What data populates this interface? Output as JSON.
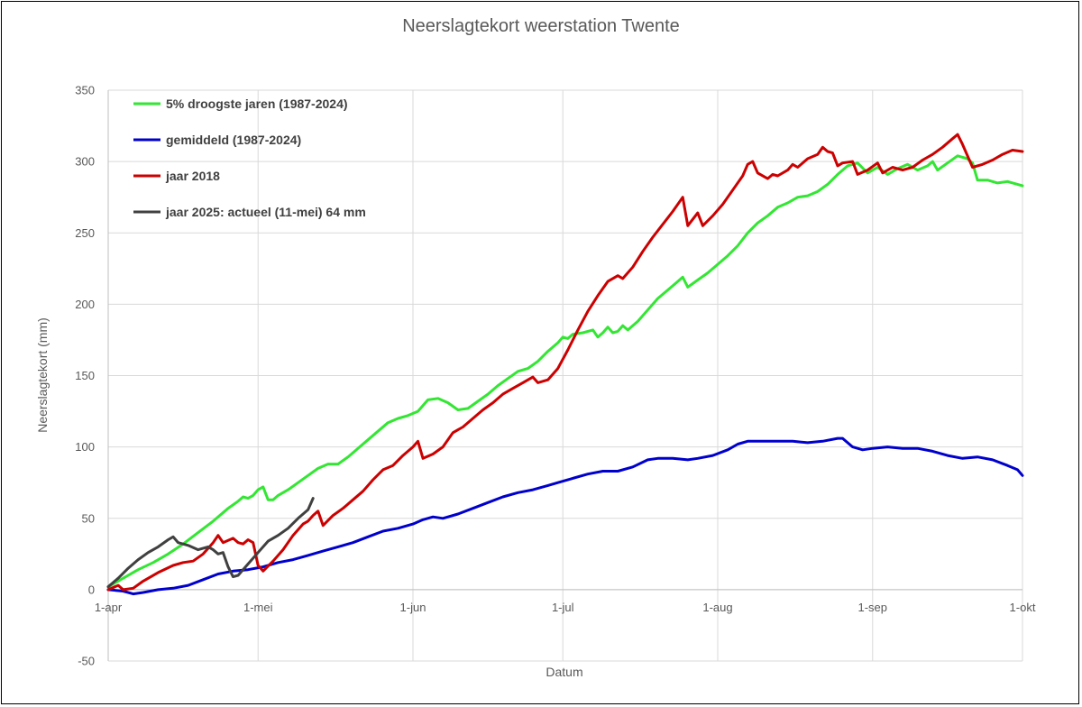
{
  "chart_data": {
    "type": "line",
    "title": "Neerslagtekort weerstation Twente",
    "xlabel": "Datum",
    "ylabel": "Neerslagtekort (mm)",
    "ylim": [
      -50,
      350
    ],
    "yticks": [
      -50,
      0,
      50,
      100,
      150,
      200,
      250,
      300,
      350
    ],
    "xlim": [
      "1-apr",
      "1-okt"
    ],
    "xticks": [
      {
        "label": "1-apr",
        "day": 0
      },
      {
        "label": "1-mei",
        "day": 30
      },
      {
        "label": "1-jun",
        "day": 61
      },
      {
        "label": "1-jul",
        "day": 91
      },
      {
        "label": "1-aug",
        "day": 122
      },
      {
        "label": "1-sep",
        "day": 153
      },
      {
        "label": "1-okt",
        "day": 183
      }
    ],
    "grid": true,
    "legend_position": "top-left",
    "series": [
      {
        "name": "5% droogste jaren (1987-2024)",
        "color": "#33e633",
        "points": [
          [
            0,
            2
          ],
          [
            3,
            8
          ],
          [
            6,
            14
          ],
          [
            9,
            19
          ],
          [
            12,
            25
          ],
          [
            15,
            32
          ],
          [
            18,
            40
          ],
          [
            21,
            48
          ],
          [
            24,
            57
          ],
          [
            26,
            62
          ],
          [
            27,
            65
          ],
          [
            28,
            64
          ],
          [
            29,
            66
          ],
          [
            30,
            70
          ],
          [
            31,
            72
          ],
          [
            32,
            63
          ],
          [
            33,
            63
          ],
          [
            34,
            66
          ],
          [
            36,
            70
          ],
          [
            38,
            75
          ],
          [
            40,
            80
          ],
          [
            42,
            85
          ],
          [
            44,
            88
          ],
          [
            46,
            88
          ],
          [
            48,
            93
          ],
          [
            50,
            99
          ],
          [
            52,
            105
          ],
          [
            54,
            111
          ],
          [
            56,
            117
          ],
          [
            58,
            120
          ],
          [
            60,
            122
          ],
          [
            62,
            125
          ],
          [
            64,
            133
          ],
          [
            66,
            134
          ],
          [
            68,
            131
          ],
          [
            70,
            126
          ],
          [
            72,
            127
          ],
          [
            74,
            132
          ],
          [
            76,
            137
          ],
          [
            78,
            143
          ],
          [
            80,
            148
          ],
          [
            82,
            153
          ],
          [
            84,
            155
          ],
          [
            86,
            160
          ],
          [
            88,
            167
          ],
          [
            90,
            173
          ],
          [
            91,
            177
          ],
          [
            92,
            176
          ],
          [
            93,
            179
          ],
          [
            95,
            180
          ],
          [
            97,
            182
          ],
          [
            98,
            177
          ],
          [
            99,
            180
          ],
          [
            100,
            184
          ],
          [
            101,
            180
          ],
          [
            102,
            181
          ],
          [
            103,
            185
          ],
          [
            104,
            182
          ],
          [
            106,
            188
          ],
          [
            108,
            196
          ],
          [
            110,
            204
          ],
          [
            112,
            210
          ],
          [
            114,
            216
          ],
          [
            115,
            219
          ],
          [
            116,
            212
          ],
          [
            118,
            217
          ],
          [
            120,
            222
          ],
          [
            122,
            228
          ],
          [
            124,
            234
          ],
          [
            126,
            241
          ],
          [
            128,
            250
          ],
          [
            130,
            257
          ],
          [
            132,
            262
          ],
          [
            134,
            268
          ],
          [
            136,
            271
          ],
          [
            138,
            275
          ],
          [
            140,
            276
          ],
          [
            142,
            279
          ],
          [
            144,
            284
          ],
          [
            146,
            291
          ],
          [
            148,
            297
          ],
          [
            150,
            299
          ],
          [
            152,
            292
          ],
          [
            154,
            296
          ],
          [
            156,
            291
          ],
          [
            158,
            295
          ],
          [
            160,
            298
          ],
          [
            162,
            294
          ],
          [
            164,
            297
          ],
          [
            165,
            300
          ],
          [
            166,
            294
          ],
          [
            168,
            299
          ],
          [
            170,
            304
          ],
          [
            172,
            302
          ],
          [
            173,
            299
          ],
          [
            174,
            287
          ],
          [
            176,
            287
          ],
          [
            178,
            285
          ],
          [
            180,
            286
          ],
          [
            182,
            284
          ],
          [
            183,
            283
          ]
        ]
      },
      {
        "name": "gemiddeld (1987-2024)",
        "color": "#0000cc",
        "points": [
          [
            0,
            0
          ],
          [
            3,
            -1
          ],
          [
            5,
            -3
          ],
          [
            7,
            -2
          ],
          [
            10,
            0
          ],
          [
            13,
            1
          ],
          [
            16,
            3
          ],
          [
            19,
            7
          ],
          [
            22,
            11
          ],
          [
            25,
            13
          ],
          [
            28,
            14
          ],
          [
            31,
            16
          ],
          [
            34,
            19
          ],
          [
            37,
            21
          ],
          [
            40,
            24
          ],
          [
            43,
            27
          ],
          [
            46,
            30
          ],
          [
            49,
            33
          ],
          [
            52,
            37
          ],
          [
            55,
            41
          ],
          [
            58,
            43
          ],
          [
            61,
            46
          ],
          [
            63,
            49
          ],
          [
            65,
            51
          ],
          [
            67,
            50
          ],
          [
            70,
            53
          ],
          [
            73,
            57
          ],
          [
            76,
            61
          ],
          [
            79,
            65
          ],
          [
            82,
            68
          ],
          [
            85,
            70
          ],
          [
            88,
            73
          ],
          [
            90,
            75
          ],
          [
            93,
            78
          ],
          [
            96,
            81
          ],
          [
            99,
            83
          ],
          [
            102,
            83
          ],
          [
            105,
            86
          ],
          [
            108,
            91
          ],
          [
            110,
            92
          ],
          [
            113,
            92
          ],
          [
            116,
            91
          ],
          [
            118,
            92
          ],
          [
            121,
            94
          ],
          [
            124,
            98
          ],
          [
            126,
            102
          ],
          [
            128,
            104
          ],
          [
            131,
            104
          ],
          [
            134,
            104
          ],
          [
            137,
            104
          ],
          [
            140,
            103
          ],
          [
            143,
            104
          ],
          [
            146,
            106
          ],
          [
            147,
            106
          ],
          [
            149,
            100
          ],
          [
            151,
            98
          ],
          [
            153,
            99
          ],
          [
            156,
            100
          ],
          [
            159,
            99
          ],
          [
            162,
            99
          ],
          [
            165,
            97
          ],
          [
            168,
            94
          ],
          [
            171,
            92
          ],
          [
            174,
            93
          ],
          [
            177,
            91
          ],
          [
            180,
            87
          ],
          [
            182,
            84
          ],
          [
            183,
            80
          ]
        ]
      },
      {
        "name": "jaar 2018",
        "color": "#cc0000",
        "points": [
          [
            0,
            0
          ],
          [
            2,
            3
          ],
          [
            3,
            0
          ],
          [
            5,
            1
          ],
          [
            7,
            6
          ],
          [
            10,
            12
          ],
          [
            13,
            17
          ],
          [
            15,
            19
          ],
          [
            17,
            20
          ],
          [
            19,
            25
          ],
          [
            21,
            33
          ],
          [
            22,
            38
          ],
          [
            23,
            33
          ],
          [
            25,
            36
          ],
          [
            26,
            33
          ],
          [
            27,
            32
          ],
          [
            28,
            35
          ],
          [
            29,
            33
          ],
          [
            30,
            17
          ],
          [
            31,
            13
          ],
          [
            33,
            20
          ],
          [
            35,
            28
          ],
          [
            37,
            38
          ],
          [
            39,
            46
          ],
          [
            40,
            48
          ],
          [
            41,
            52
          ],
          [
            42,
            55
          ],
          [
            43,
            45
          ],
          [
            45,
            52
          ],
          [
            47,
            57
          ],
          [
            49,
            63
          ],
          [
            51,
            69
          ],
          [
            53,
            77
          ],
          [
            55,
            84
          ],
          [
            57,
            87
          ],
          [
            59,
            94
          ],
          [
            61,
            100
          ],
          [
            62,
            104
          ],
          [
            63,
            92
          ],
          [
            65,
            95
          ],
          [
            67,
            100
          ],
          [
            69,
            110
          ],
          [
            71,
            114
          ],
          [
            73,
            120
          ],
          [
            75,
            126
          ],
          [
            77,
            131
          ],
          [
            79,
            137
          ],
          [
            81,
            141
          ],
          [
            83,
            145
          ],
          [
            85,
            149
          ],
          [
            86,
            145
          ],
          [
            88,
            147
          ],
          [
            90,
            155
          ],
          [
            92,
            168
          ],
          [
            94,
            182
          ],
          [
            96,
            195
          ],
          [
            98,
            206
          ],
          [
            100,
            216
          ],
          [
            102,
            220
          ],
          [
            103,
            218
          ],
          [
            105,
            226
          ],
          [
            107,
            237
          ],
          [
            109,
            247
          ],
          [
            111,
            256
          ],
          [
            113,
            265
          ],
          [
            115,
            275
          ],
          [
            116,
            255
          ],
          [
            118,
            264
          ],
          [
            119,
            255
          ],
          [
            121,
            262
          ],
          [
            123,
            270
          ],
          [
            125,
            280
          ],
          [
            127,
            290
          ],
          [
            128,
            298
          ],
          [
            129,
            300
          ],
          [
            130,
            292
          ],
          [
            132,
            288
          ],
          [
            133,
            291
          ],
          [
            134,
            290
          ],
          [
            136,
            294
          ],
          [
            137,
            298
          ],
          [
            138,
            296
          ],
          [
            140,
            302
          ],
          [
            142,
            305
          ],
          [
            143,
            310
          ],
          [
            144,
            307
          ],
          [
            145,
            306
          ],
          [
            146,
            297
          ],
          [
            147,
            299
          ],
          [
            149,
            300
          ],
          [
            150,
            291
          ],
          [
            152,
            294
          ],
          [
            154,
            299
          ],
          [
            155,
            292
          ],
          [
            157,
            296
          ],
          [
            159,
            294
          ],
          [
            161,
            296
          ],
          [
            163,
            301
          ],
          [
            165,
            305
          ],
          [
            167,
            310
          ],
          [
            169,
            316
          ],
          [
            170,
            319
          ],
          [
            171,
            312
          ],
          [
            173,
            296
          ],
          [
            175,
            298
          ],
          [
            177,
            301
          ],
          [
            179,
            305
          ],
          [
            181,
            308
          ],
          [
            183,
            307
          ]
        ]
      },
      {
        "name": "jaar 2025: actueel (11-mei) 64 mm",
        "color": "#404040",
        "points": [
          [
            0,
            2
          ],
          [
            2,
            8
          ],
          [
            4,
            15
          ],
          [
            6,
            21
          ],
          [
            8,
            26
          ],
          [
            10,
            30
          ],
          [
            12,
            35
          ],
          [
            13,
            37
          ],
          [
            14,
            33
          ],
          [
            16,
            31
          ],
          [
            18,
            28
          ],
          [
            20,
            30
          ],
          [
            21,
            28
          ],
          [
            22,
            25
          ],
          [
            23,
            26
          ],
          [
            24,
            16
          ],
          [
            25,
            9
          ],
          [
            26,
            10
          ],
          [
            28,
            18
          ],
          [
            30,
            26
          ],
          [
            32,
            34
          ],
          [
            34,
            38
          ],
          [
            36,
            43
          ],
          [
            38,
            50
          ],
          [
            40,
            56
          ],
          [
            41,
            64
          ]
        ]
      }
    ]
  }
}
